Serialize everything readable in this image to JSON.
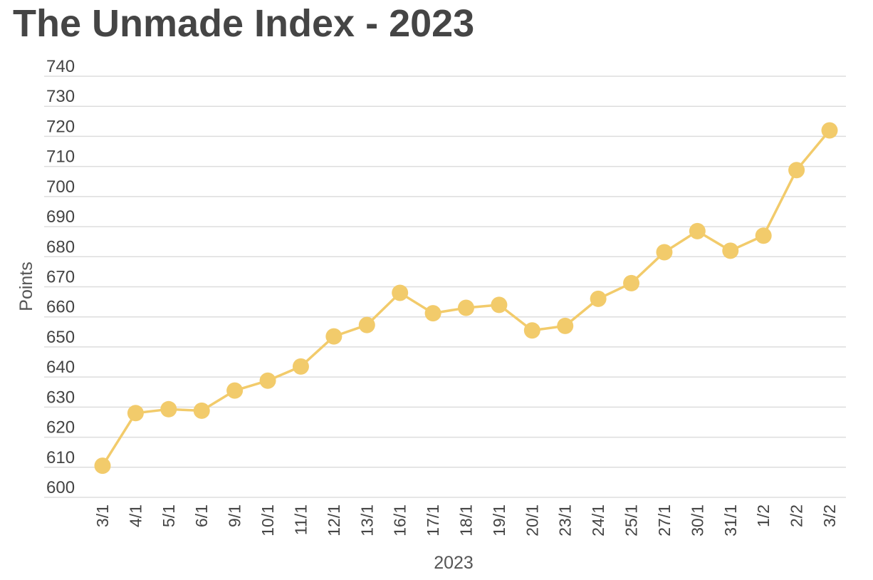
{
  "title": "The Unmade Index - 2023",
  "chart_data": {
    "type": "line",
    "title": "The Unmade Index - 2023",
    "xlabel": "2023",
    "ylabel": "Points",
    "ylim": [
      600,
      740
    ],
    "yticks": [
      600,
      610,
      620,
      630,
      640,
      650,
      660,
      670,
      680,
      690,
      700,
      710,
      720,
      730,
      740
    ],
    "grid": true,
    "legend": "none",
    "color": "#f2cb6b",
    "categories": [
      "3/1",
      "4/1",
      "5/1",
      "6/1",
      "9/1",
      "10/1",
      "11/1",
      "12/1",
      "13/1",
      "16/1",
      "17/1",
      "18/1",
      "19/1",
      "20/1",
      "23/1",
      "24/1",
      "25/1",
      "27/1",
      "30/1",
      "31/1",
      "1/2",
      "2/2",
      "3/2"
    ],
    "values": [
      610.5,
      628,
      629.3,
      628.8,
      635.5,
      638.8,
      643.5,
      653.5,
      657.3,
      668,
      661.2,
      663,
      664,
      655.5,
      657,
      666,
      671.2,
      681.5,
      688.5,
      682,
      687,
      708.8,
      722
    ]
  }
}
